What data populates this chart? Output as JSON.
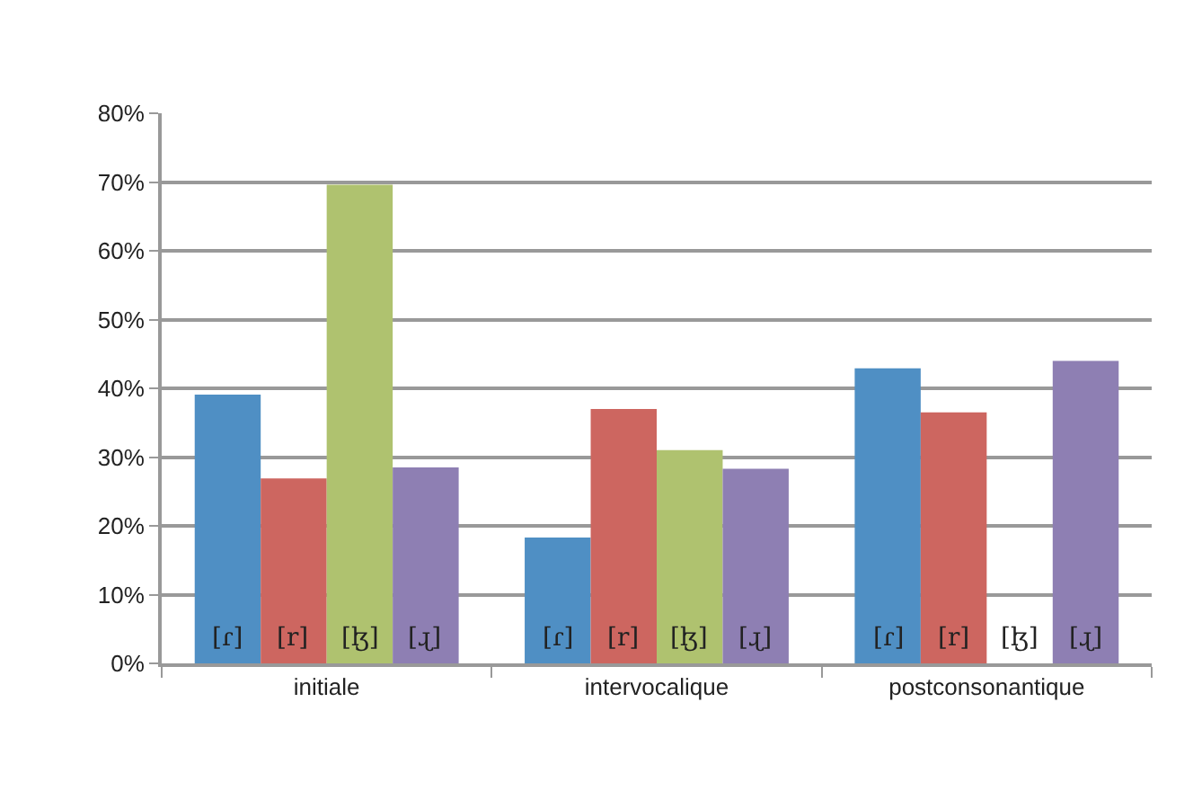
{
  "chart_data": {
    "type": "bar",
    "categories": [
      "initiale",
      "intervocalique",
      "postconsonantique"
    ],
    "series": [
      {
        "name": "[ɾ]",
        "color": "#4f8fc4",
        "values": [
          39.1,
          18.3,
          42.9
        ]
      },
      {
        "name": "[r]",
        "color": "#cd6660",
        "values": [
          26.9,
          37.0,
          36.5
        ]
      },
      {
        "name": "[ɮ]",
        "color": "#afc26f",
        "values": [
          69.6,
          31.0,
          0
        ]
      },
      {
        "name": "[ɻ]",
        "color": "#8e7fb3",
        "values": [
          28.5,
          28.3,
          44.0
        ]
      }
    ],
    "ylim": [
      0,
      80
    ],
    "yticks": [
      {
        "value": 0,
        "label": "0%"
      },
      {
        "value": 10,
        "label": "10%"
      },
      {
        "value": 20,
        "label": "20%"
      },
      {
        "value": 30,
        "label": "30%"
      },
      {
        "value": 40,
        "label": "40%"
      },
      {
        "value": 50,
        "label": "50%"
      },
      {
        "value": 60,
        "label": "60%"
      },
      {
        "value": 70,
        "label": "70%"
      },
      {
        "value": 80,
        "label": "80%"
      }
    ],
    "grid": "y",
    "legend": false
  }
}
